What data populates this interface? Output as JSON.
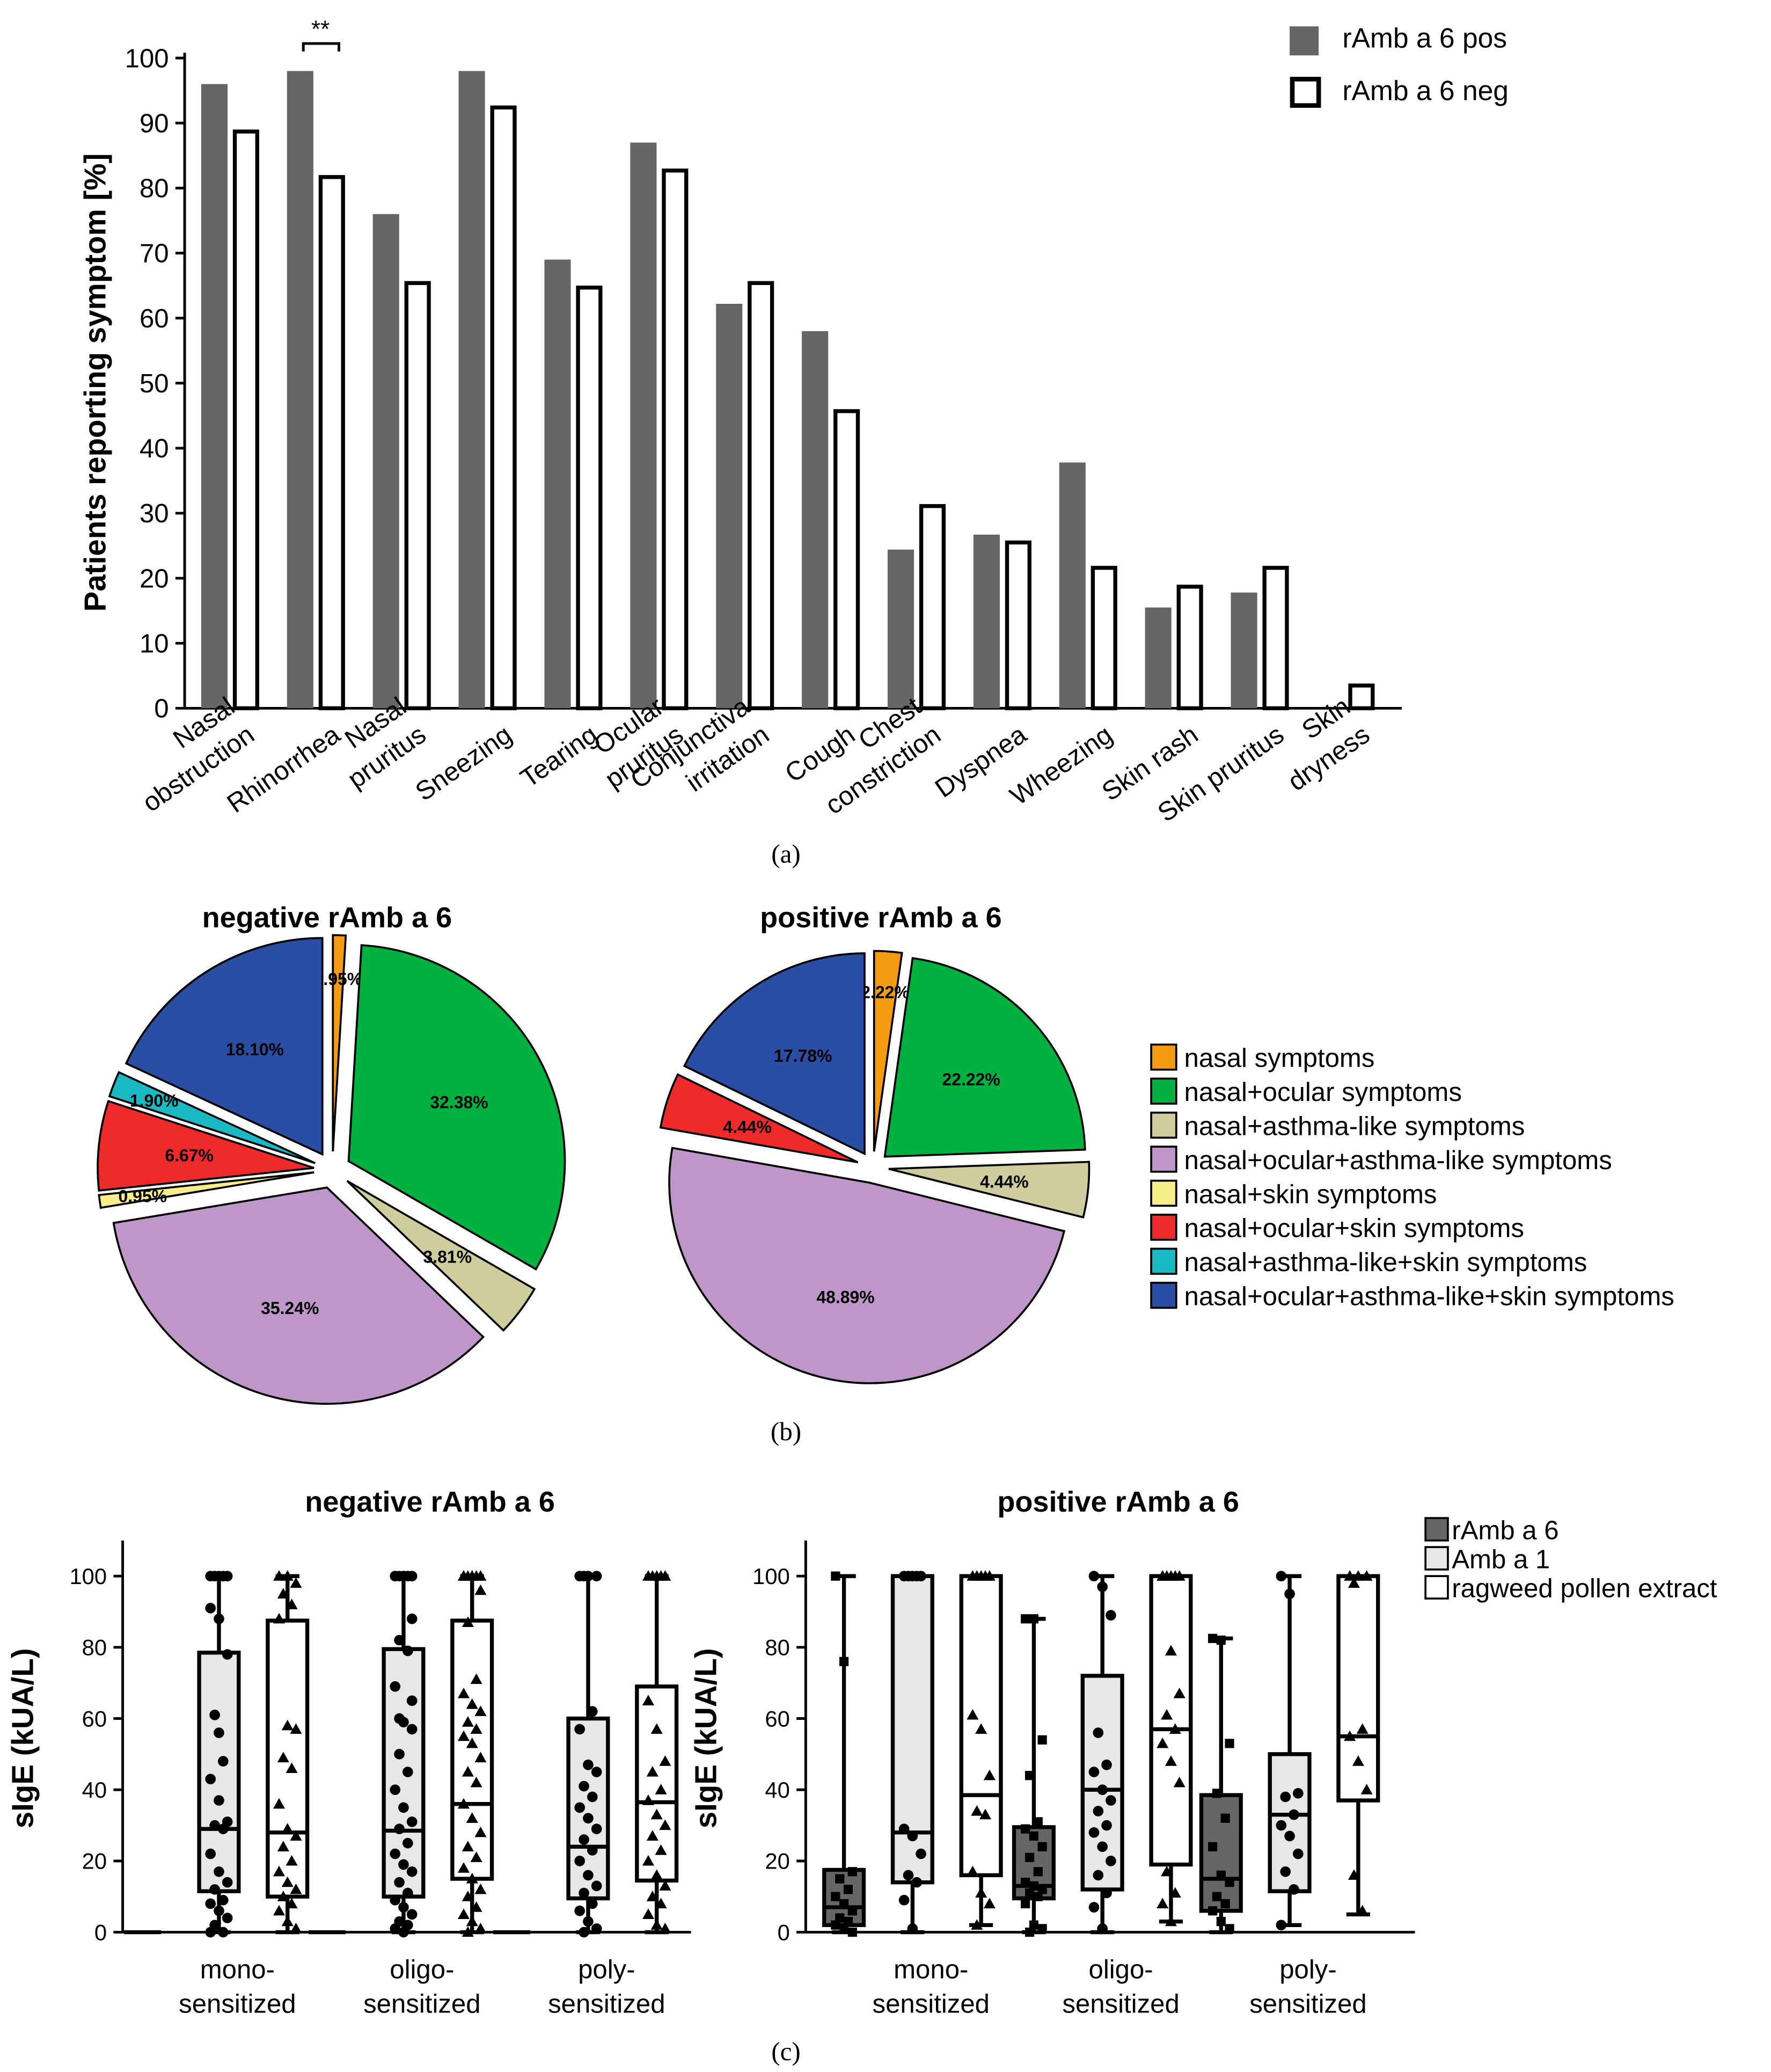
{
  "colors": {
    "pos_bar": "#666666",
    "neg_bar": "#ffffff",
    "stroke": "#000000",
    "box_ramb6": "#666666",
    "box_amba1": "#e6e7e7",
    "box_extract": "#ffffff"
  },
  "chart_data": [
    {
      "type": "bar",
      "panel_label": "(a)",
      "ylabel": "Patients reporting symptom [%]",
      "ylim": [
        0,
        100
      ],
      "yticks": [
        "0",
        "10",
        "20",
        "30",
        "40",
        "50",
        "60",
        "70",
        "80",
        "90",
        "100"
      ],
      "categories": [
        [
          "Nasal",
          "obstruction"
        ],
        [
          "Rhinorrhea"
        ],
        [
          "Nasal",
          "pruritus"
        ],
        [
          "Sneezing"
        ],
        [
          "Tearing"
        ],
        [
          "Ocular",
          "pruritus"
        ],
        [
          "Conjunctiva",
          "irritation"
        ],
        [
          "Cough"
        ],
        [
          "Chest",
          "constriction"
        ],
        [
          "Dyspnea"
        ],
        [
          "Wheezing"
        ],
        [
          "Skin rash"
        ],
        [
          "Skin pruritus"
        ],
        [
          "Skin",
          "dryness"
        ]
      ],
      "series": [
        {
          "name": "rAmb a 6 pos",
          "values": [
            96,
            98,
            76,
            98,
            69,
            87,
            62.2,
            58,
            24.4,
            26.7,
            37.8,
            15.5,
            17.8,
            0
          ]
        },
        {
          "name": "rAmb a 6 neg",
          "values": [
            89,
            82,
            65.7,
            92.7,
            65,
            83,
            65.7,
            46,
            31.4,
            25.8,
            21.9,
            19,
            21.9,
            3.8
          ]
        }
      ],
      "annotation": {
        "text": "**",
        "between_category": 1
      }
    },
    {
      "type": "pie",
      "panel_label": "(b)",
      "legend": [
        {
          "label": "nasal symptoms",
          "color": "#f39c12"
        },
        {
          "label": "nasal+ocular symptoms",
          "color": "#00b140"
        },
        {
          "label": "nasal+asthma-like symptoms",
          "color": "#cfcc9e"
        },
        {
          "label": "nasal+ocular+asthma-like symptoms",
          "color": "#be96c9"
        },
        {
          "label": "nasal+skin symptoms",
          "color": "#f7ee8a"
        },
        {
          "label": "nasal+ocular+skin symptoms",
          "color": "#ee2a2a"
        },
        {
          "label": "nasal+asthma-like+skin symptoms",
          "color": "#1ab9c4"
        },
        {
          "label": "nasal+ocular+asthma-like+skin symptoms",
          "color": "#2b4ea5"
        }
      ],
      "pies": [
        {
          "title": "negative rAmb a 6",
          "values": [
            0.95,
            32.38,
            3.81,
            35.24,
            0.95,
            6.67,
            1.9,
            18.1
          ],
          "labels": [
            "0.95%",
            "32.38%",
            "3.81%",
            "35.24%",
            "0.95%",
            "6.67%",
            "1.90%",
            "18.10%"
          ]
        },
        {
          "title": "positive rAmb a 6",
          "values": [
            2.22,
            22.22,
            4.44,
            48.89,
            0,
            4.44,
            0,
            17.78
          ],
          "labels": [
            "2.22%",
            "22.22%",
            "4.44%",
            "48.89%",
            "",
            "4.44%",
            "",
            "17.78%"
          ]
        }
      ]
    },
    {
      "type": "box",
      "panel_label": "(c)",
      "ylabel": "sIgE (kUA/L)",
      "ylim": [
        0,
        110
      ],
      "yticks": [
        "0",
        "20",
        "40",
        "60",
        "80",
        "100"
      ],
      "groups": [
        [
          "mono-",
          "sensitized"
        ],
        [
          "oligo-",
          "sensitized"
        ],
        [
          "poly-",
          "sensitized"
        ]
      ],
      "series_legend": [
        "rAmb a 6",
        "Amb a 1",
        "ragweed pollen extract"
      ],
      "panels": [
        {
          "title": "negative rAmb a 6",
          "boxes": [
            {
              "group": 0,
              "series": 0,
              "q1": 0,
              "median": 0,
              "q3": 0,
              "min": 0,
              "max": 0,
              "points": []
            },
            {
              "group": 0,
              "series": 1,
              "q1": 11.5,
              "median": 29,
              "q3": 78.5,
              "min": 0,
              "max": 100,
              "points": [
                100,
                100,
                100,
                100,
                100,
                91,
                88,
                78,
                61,
                48,
                43,
                37,
                31,
                30,
                29,
                22,
                17,
                14,
                12,
                9,
                8,
                6,
                4,
                2,
                0,
                0,
                56
              ]
            },
            {
              "group": 0,
              "series": 2,
              "q1": 10,
              "median": 28,
              "q3": 87.5,
              "min": 0,
              "max": 100,
              "points": [
                100,
                100,
                98,
                95,
                92,
                88,
                58,
                57,
                49,
                46,
                36,
                29,
                27,
                24,
                20,
                17,
                14,
                12,
                10,
                8,
                6,
                3,
                1
              ]
            },
            {
              "group": 1,
              "series": 0,
              "q1": 0,
              "median": 0,
              "q3": 0,
              "min": 0,
              "max": 0,
              "points": []
            },
            {
              "group": 1,
              "series": 1,
              "q1": 10,
              "median": 28.5,
              "q3": 79.5,
              "min": 0,
              "max": 100,
              "points": [
                100,
                100,
                100,
                100,
                100,
                100,
                100,
                88,
                82,
                79,
                69,
                59,
                57,
                50,
                45,
                40,
                35,
                31,
                29,
                25,
                22,
                19,
                17,
                14,
                11,
                9,
                7,
                5,
                3,
                2,
                1,
                0,
                65,
                60
              ]
            },
            {
              "group": 1,
              "series": 2,
              "q1": 15,
              "median": 36,
              "q3": 87.5,
              "min": 0,
              "max": 100,
              "points": [
                100,
                100,
                100,
                100,
                100,
                100,
                100,
                96,
                87,
                71,
                67,
                64,
                62,
                59,
                57,
                55,
                53,
                49,
                45,
                42,
                36,
                32,
                28,
                24,
                21,
                18,
                15,
                12,
                10,
                7,
                5,
                3,
                1,
                0
              ]
            },
            {
              "group": 2,
              "series": 0,
              "q1": 0,
              "median": 0,
              "q3": 0,
              "min": 0,
              "max": 0,
              "points": []
            },
            {
              "group": 2,
              "series": 1,
              "q1": 9.5,
              "median": 24,
              "q3": 60,
              "min": 0,
              "max": 100,
              "points": [
                100,
                100,
                100,
                100,
                62,
                57,
                47,
                45,
                41,
                38,
                35,
                32,
                29,
                26,
                23,
                20,
                16,
                13,
                11,
                8,
                6,
                3,
                1,
                0
              ]
            },
            {
              "group": 2,
              "series": 2,
              "q1": 14.5,
              "median": 36.5,
              "q3": 69,
              "min": 0,
              "max": 100,
              "points": [
                100,
                100,
                100,
                100,
                100,
                65,
                57,
                48,
                45,
                40,
                37,
                33,
                30,
                27,
                23,
                20,
                16,
                13,
                10,
                8,
                5,
                2,
                1
              ]
            }
          ]
        },
        {
          "title": "positive rAmb a 6",
          "boxes": [
            {
              "group": 0,
              "series": 0,
              "q1": 2,
              "median": 7,
              "q3": 17.5,
              "min": 0,
              "max": 100,
              "points": [
                100,
                76,
                17,
                15,
                12,
                10,
                8,
                6,
                4,
                3,
                2,
                1,
                0
              ]
            },
            {
              "group": 0,
              "series": 1,
              "q1": 14,
              "median": 28,
              "q3": 100,
              "min": 0,
              "max": 100,
              "points": [
                100,
                100,
                100,
                100,
                100,
                29,
                27,
                22,
                16,
                14,
                9,
                1
              ]
            },
            {
              "group": 0,
              "series": 2,
              "q1": 16,
              "median": 38.5,
              "q3": 100,
              "min": 2,
              "max": 100,
              "points": [
                100,
                100,
                100,
                100,
                100,
                61,
                57,
                44,
                34,
                33,
                17,
                11,
                8,
                2
              ]
            },
            {
              "group": 1,
              "series": 0,
              "q1": 9.5,
              "median": 13,
              "q3": 29.5,
              "min": 0,
              "max": 88,
              "points": [
                88,
                88,
                54,
                44,
                31,
                29,
                27,
                24,
                21,
                17,
                14,
                13,
                12,
                11,
                10,
                8,
                2,
                1,
                0
              ]
            },
            {
              "group": 1,
              "series": 1,
              "q1": 12,
              "median": 40,
              "q3": 72,
              "min": 0,
              "max": 100,
              "points": [
                100,
                97,
                89,
                56,
                47,
                45,
                40,
                37,
                34,
                30,
                28,
                24,
                20,
                16,
                11,
                7,
                1
              ]
            },
            {
              "group": 1,
              "series": 2,
              "q1": 19,
              "median": 57,
              "q3": 100,
              "min": 3,
              "max": 100,
              "points": [
                100,
                100,
                100,
                100,
                100,
                100,
                79,
                67,
                61,
                57,
                53,
                48,
                42,
                17,
                11,
                8,
                3
              ]
            },
            {
              "group": 2,
              "series": 0,
              "q1": 6,
              "median": 15,
              "q3": 38.5,
              "min": 0,
              "max": 82.5,
              "points": [
                82.5,
                82,
                53,
                39,
                32,
                24,
                16,
                14,
                10,
                8,
                6,
                3,
                1
              ]
            },
            {
              "group": 2,
              "series": 1,
              "q1": 11.5,
              "median": 33,
              "q3": 50,
              "min": 2,
              "max": 100,
              "points": [
                100,
                95,
                39,
                38,
                33,
                30,
                27,
                22,
                17,
                12,
                2
              ]
            },
            {
              "group": 2,
              "series": 2,
              "q1": 37,
              "median": 55,
              "q3": 100,
              "min": 5,
              "max": 100,
              "points": [
                100,
                100,
                100,
                98,
                57,
                55,
                48,
                40,
                16,
                6
              ]
            }
          ]
        }
      ]
    }
  ]
}
